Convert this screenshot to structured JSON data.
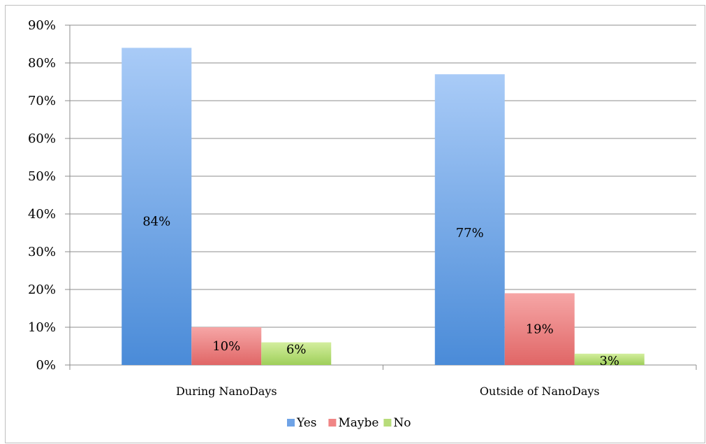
{
  "chart_data": {
    "type": "bar",
    "categories": [
      "During NanoDays",
      "Outside of NanoDays"
    ],
    "series": [
      {
        "name": "Yes",
        "values": [
          84,
          77
        ],
        "labels": [
          "84%",
          "77%"
        ],
        "color": "#6fa3e6"
      },
      {
        "name": "Maybe",
        "values": [
          10,
          19
        ],
        "labels": [
          "10%",
          "19%"
        ],
        "color": "#f08585"
      },
      {
        "name": "No",
        "values": [
          6,
          3
        ],
        "labels": [
          "6%",
          "3%"
        ],
        "color": "#b7dc7a"
      }
    ],
    "yticks": [
      "0%",
      "10%",
      "20%",
      "30%",
      "40%",
      "50%",
      "60%",
      "70%",
      "80%",
      "90%"
    ],
    "ylim": [
      0,
      90
    ],
    "grid": true,
    "legend": "bottom",
    "title": "",
    "xlabel": "",
    "ylabel": ""
  }
}
